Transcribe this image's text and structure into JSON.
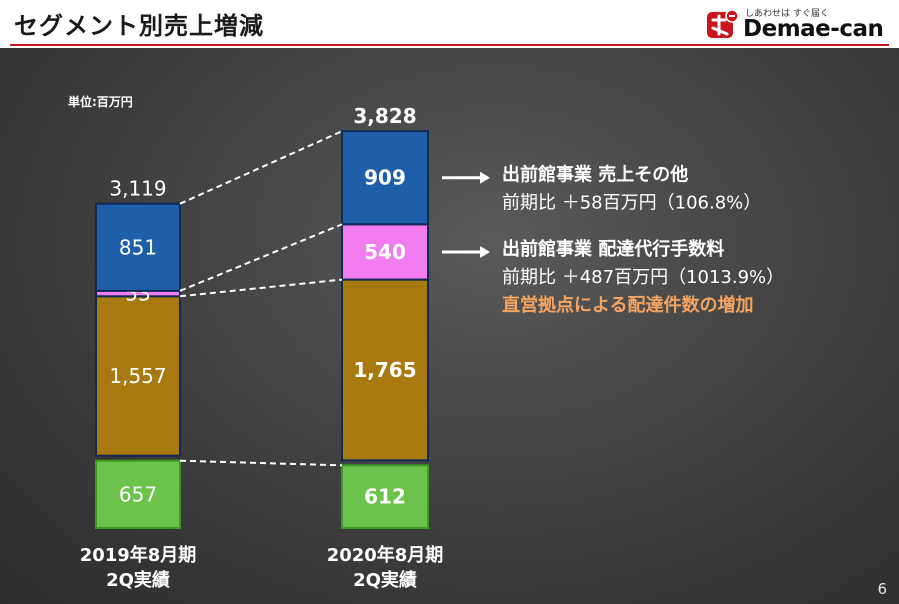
{
  "header": {
    "title": "セグメント別売上増減",
    "logo_tagline": "しあわせは すぐ届く",
    "logo_wordmark": "Demae-can",
    "accent_color": "#c8161d"
  },
  "page_number": "6",
  "chart_data": {
    "type": "bar",
    "stacked": true,
    "unit_label": "単位:百万円",
    "categories": [
      "2019年8月期\n2Q実績",
      "2020年8月期\n2Q実績"
    ],
    "totals": [
      "3,119",
      "3,828"
    ],
    "series": [
      {
        "color": "#6cc24a",
        "values": [
          657,
          612
        ],
        "labels": [
          "657",
          "612"
        ]
      },
      {
        "color": "#a8790e",
        "values": [
          1557,
          1765
        ],
        "labels": [
          "1,557",
          "1,765"
        ]
      },
      {
        "color": "#f07cf0",
        "values": [
          53,
          540
        ],
        "labels": [
          "53",
          "540"
        ]
      },
      {
        "color": "#1f5ea8",
        "values": [
          851,
          909
        ],
        "labels": [
          "851",
          "909"
        ]
      }
    ],
    "annotations": [
      {
        "series_index": 3,
        "title": "出前館事業 売上その他",
        "detail": "前期比 ＋58百万円（106.8%）"
      },
      {
        "series_index": 2,
        "title": "出前館事業 配達代行手数料",
        "detail": "前期比 ＋487百万円（1013.9%）",
        "note": "直営拠点による配達件数の増加",
        "note_color": "#f4a460"
      }
    ],
    "ylim": [
      0,
      3828
    ]
  }
}
